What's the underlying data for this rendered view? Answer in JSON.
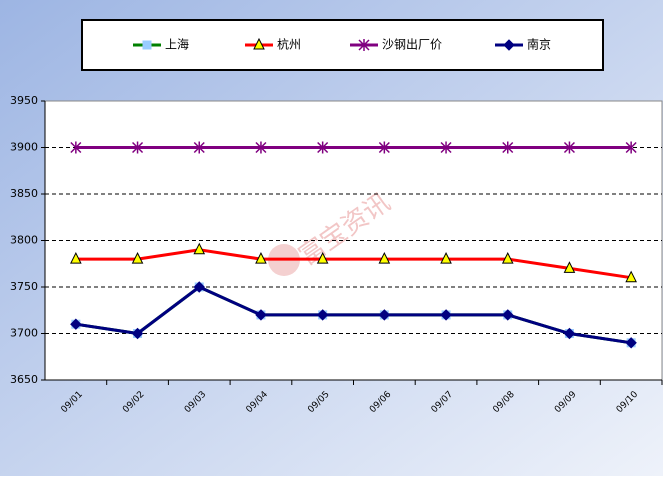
{
  "chart_data": {
    "type": "line",
    "watermark": "富宝资讯",
    "categories": [
      "09/01",
      "09/02",
      "09/03",
      "09/04",
      "09/05",
      "09/06",
      "09/07",
      "09/08",
      "09/09",
      "09/10"
    ],
    "series": [
      {
        "name": "上海",
        "color": "#008000",
        "marker": "square",
        "marker_color": "#99ccff",
        "values": [
          3710,
          3700,
          3750,
          3720,
          3720,
          3720,
          3720,
          3720,
          3700,
          3690
        ]
      },
      {
        "name": "杭州",
        "color": "#ff0000",
        "marker": "triangle",
        "marker_color": "#ffff00",
        "values": [
          3780,
          3780,
          3790,
          3780,
          3780,
          3780,
          3780,
          3780,
          3770,
          3760
        ]
      },
      {
        "name": "沙钢出厂价",
        "color": "#800080",
        "marker": "star",
        "marker_color": "#800080",
        "values": [
          3900,
          3900,
          3900,
          3900,
          3900,
          3900,
          3900,
          3900,
          3900,
          3900
        ]
      },
      {
        "name": "南京",
        "color": "#000080",
        "marker": "diamond",
        "marker_color": "#000080",
        "values": [
          3710,
          3700,
          3750,
          3720,
          3720,
          3720,
          3720,
          3720,
          3700,
          3690
        ]
      }
    ],
    "ylim": [
      3650,
      3950
    ],
    "yticks": [
      3650,
      3700,
      3750,
      3800,
      3850,
      3900,
      3950
    ],
    "grid": true
  }
}
